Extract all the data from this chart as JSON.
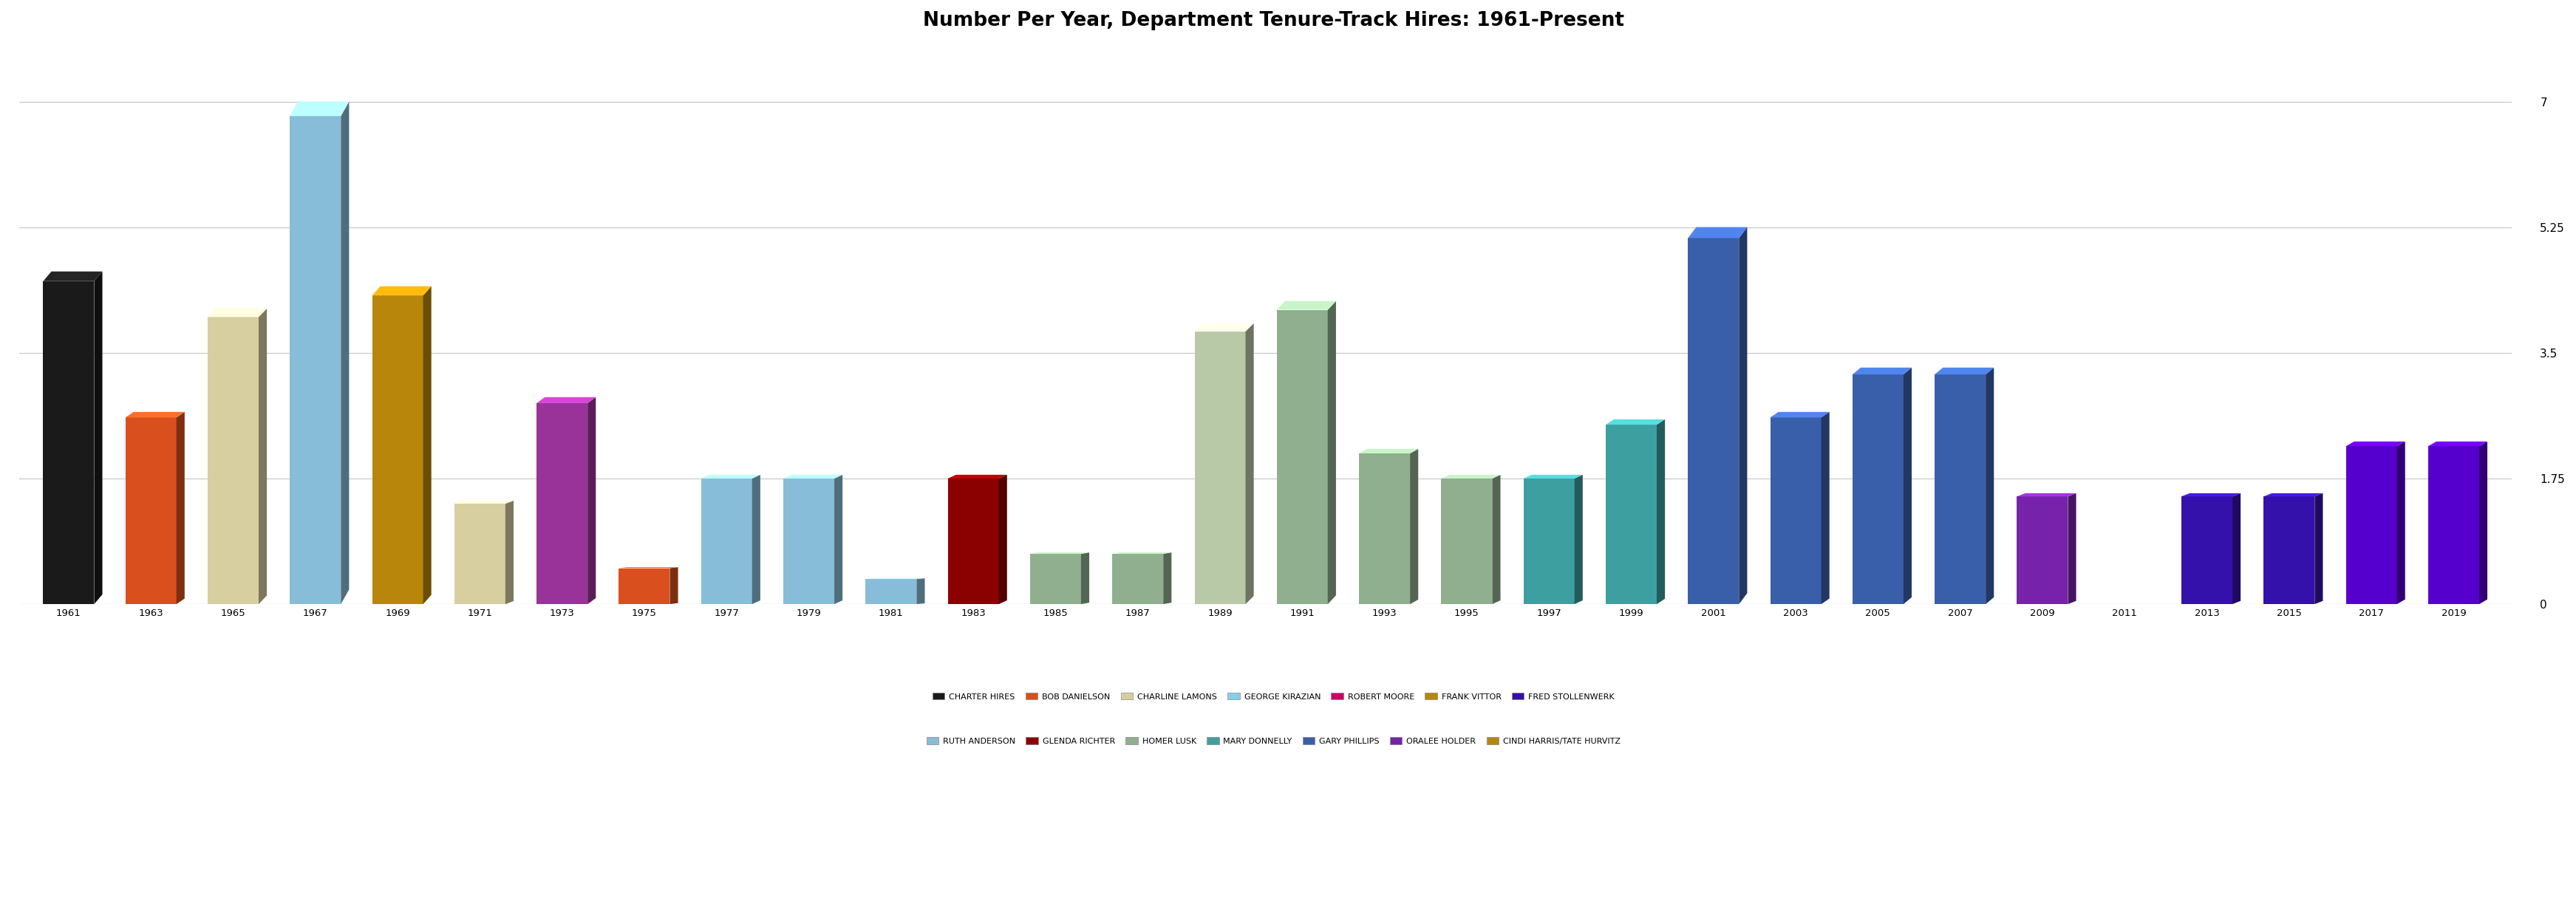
{
  "title": "Number Per Year, Department Tenure-Track Hires: 1961-Present",
  "yticks": [
    0,
    1.75,
    3.5,
    5.25,
    7
  ],
  "ylim": [
    0,
    7.8
  ],
  "background_color": "#ffffff",
  "bars": [
    {
      "year": "1961",
      "value": 4.5,
      "color": "#1a1a1a",
      "label": "Charter Hires"
    },
    {
      "year": "1963",
      "value": 2.6,
      "color": "#d94f1e",
      "label": "Bob Danielson"
    },
    {
      "year": "1965",
      "value": 4.0,
      "color": "#d8cfa0",
      "label": "Charline Lamons"
    },
    {
      "year": "1967",
      "value": 6.8,
      "color": "#87bdd8",
      "label": "Ruth Anderson"
    },
    {
      "year": "1969",
      "value": 4.3,
      "color": "#b8860b",
      "label": "Frank Vittor"
    },
    {
      "year": "1971",
      "value": 1.4,
      "color": "#d8cfa0",
      "label": "Charline Lamons"
    },
    {
      "year": "1973",
      "value": 2.8,
      "color": "#993399",
      "label": "Oralee Holder"
    },
    {
      "year": "1975",
      "value": 0.5,
      "color": "#d94f1e",
      "label": "Bob Danielson"
    },
    {
      "year": "1977",
      "value": 1.75,
      "color": "#87bdd8",
      "label": "Ruth Anderson"
    },
    {
      "year": "1979",
      "value": 1.75,
      "color": "#87bdd8",
      "label": "Ruth Anderson"
    },
    {
      "year": "1981",
      "value": 0.35,
      "color": "#87bdd8",
      "label": "Ruth Anderson"
    },
    {
      "year": "1983",
      "value": 1.75,
      "color": "#8b0000",
      "label": "Glenda Richter"
    },
    {
      "year": "1985",
      "value": 0.7,
      "color": "#8faf8f",
      "label": "Homer Lusk"
    },
    {
      "year": "1987",
      "value": 0.7,
      "color": "#8faf8f",
      "label": "Homer Lusk"
    },
    {
      "year": "1989",
      "value": 3.8,
      "color": "#b8c9a8",
      "label": "Charline Lamons"
    },
    {
      "year": "1991",
      "value": 4.1,
      "color": "#8faf8f",
      "label": "Homer Lusk"
    },
    {
      "year": "1993",
      "value": 2.1,
      "color": "#8faf8f",
      "label": "Homer Lusk"
    },
    {
      "year": "1995",
      "value": 1.75,
      "color": "#8faf8f",
      "label": "Homer Lusk"
    },
    {
      "year": "1997",
      "value": 1.75,
      "color": "#3d9fa0",
      "label": "Mary Donnelly"
    },
    {
      "year": "1999",
      "value": 2.5,
      "color": "#3d9fa0",
      "label": "Mary Donnelly"
    },
    {
      "year": "2001",
      "value": 5.1,
      "color": "#3a5faa",
      "label": "Gary Phillips"
    },
    {
      "year": "2003",
      "value": 2.6,
      "color": "#3a5faa",
      "label": "Gary Phillips"
    },
    {
      "year": "2005",
      "value": 3.2,
      "color": "#3a5faa",
      "label": "Gary Phillips"
    },
    {
      "year": "2007",
      "value": 3.2,
      "color": "#3a5faa",
      "label": "Gary Phillips"
    },
    {
      "year": "2009",
      "value": 1.5,
      "color": "#7722aa",
      "label": "Oralee Holder"
    },
    {
      "year": "2011",
      "value": 0.0,
      "color": "#3311aa",
      "label": "Fred Stollenwerk"
    },
    {
      "year": "2013",
      "value": 1.5,
      "color": "#3311aa",
      "label": "Fred Stollenwerk"
    },
    {
      "year": "2015",
      "value": 1.5,
      "color": "#3311aa",
      "label": "Fred Stollenwerk"
    },
    {
      "year": "2017",
      "value": 2.2,
      "color": "#5500cc",
      "label": "Fred Stollenwerk"
    },
    {
      "year": "2019",
      "value": 2.2,
      "color": "#5500cc",
      "label": "Fred Stollenwerk"
    }
  ],
  "legend_row1": [
    {
      "label": "Charter Hires",
      "color": "#1a1a1a"
    },
    {
      "label": "Bob Danielson",
      "color": "#d94f1e"
    },
    {
      "label": "Charline Lamons",
      "color": "#d8cfa0"
    },
    {
      "label": "George Kirazian",
      "color": "#87ceeb"
    },
    {
      "label": "Robert Moore",
      "color": "#cc0066"
    },
    {
      "label": "Frank Vittor",
      "color": "#b8860b"
    },
    {
      "label": "Fred Stollenwerk",
      "color": "#3311aa"
    }
  ],
  "legend_row2": [
    {
      "label": "Ruth Anderson",
      "color": "#87bdd8"
    },
    {
      "label": "Glenda Richter",
      "color": "#8b0000"
    },
    {
      "label": "Homer Lusk",
      "color": "#8faf8f"
    },
    {
      "label": "Mary Donnelly",
      "color": "#3d9fa0"
    },
    {
      "label": "Gary Phillips",
      "color": "#3a5faa"
    },
    {
      "label": "Oralee Holder",
      "color": "#7722aa"
    },
    {
      "label": "Cindi Harris/Tate Hurvitz",
      "color": "#b8860b"
    }
  ]
}
